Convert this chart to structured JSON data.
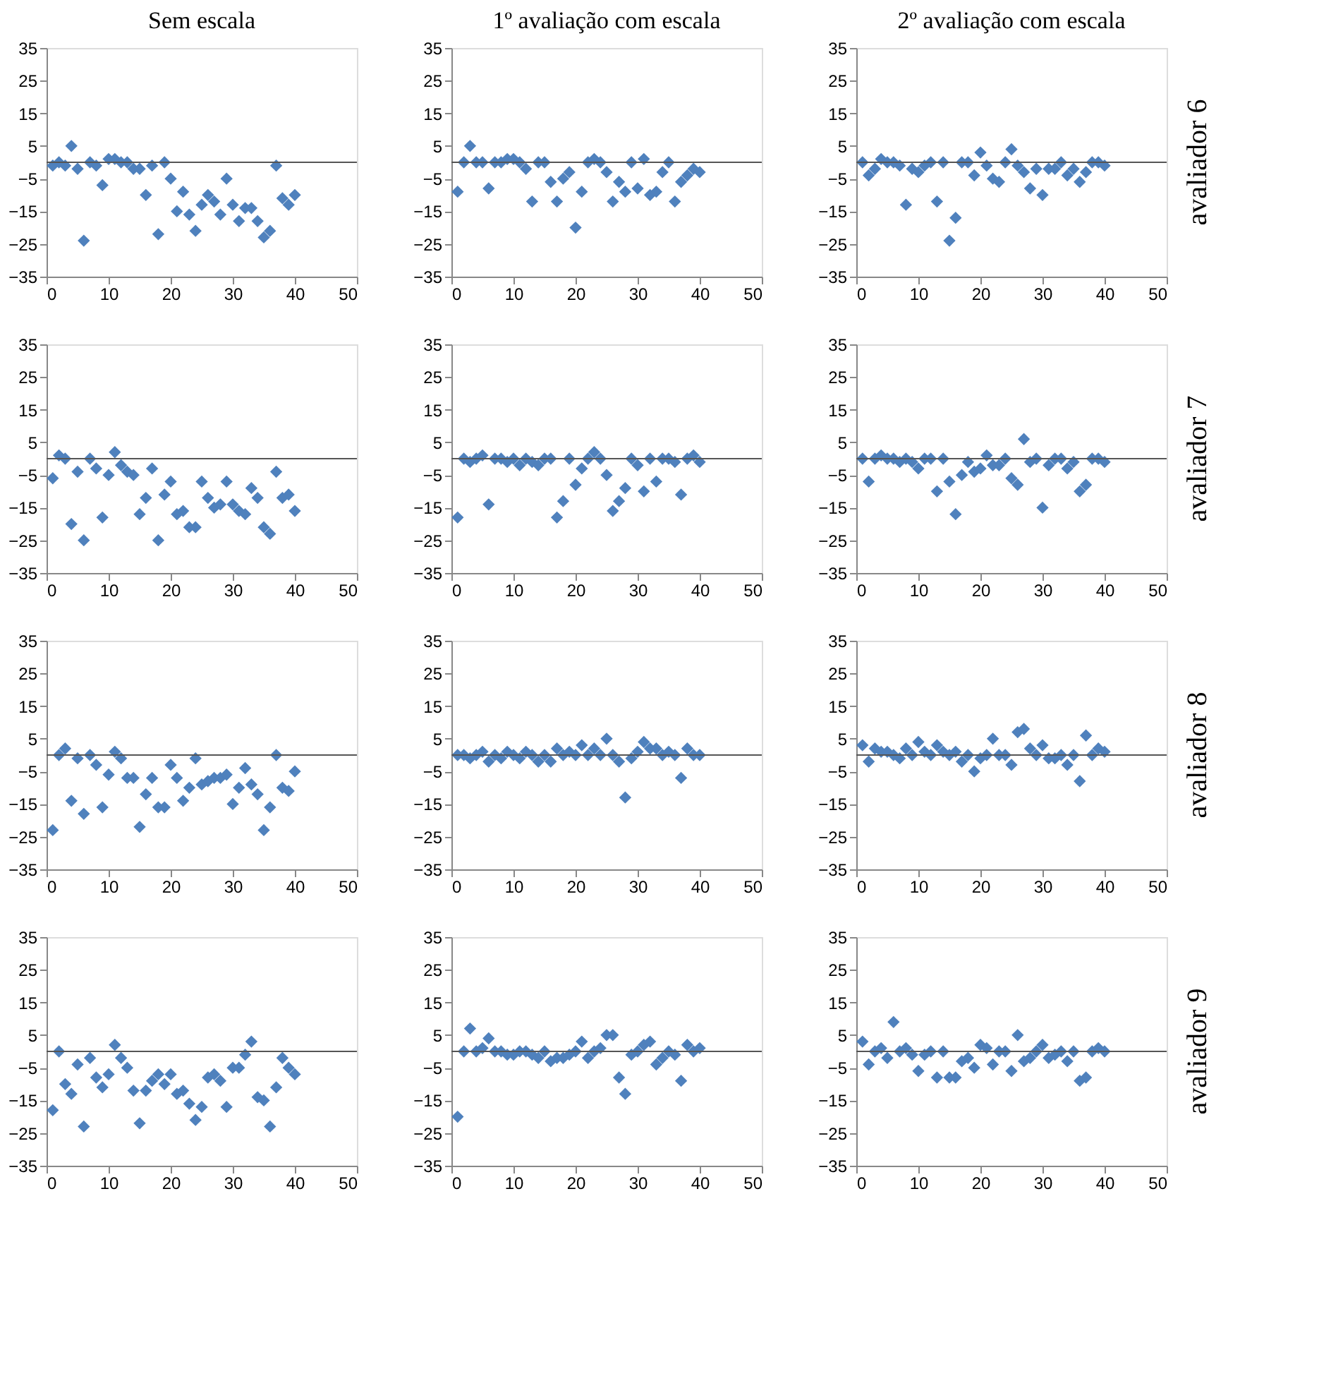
{
  "chart_data": [
    {
      "type": "scatter",
      "title": "Sem escala",
      "x": [
        1,
        2,
        3,
        4,
        5,
        6,
        7,
        8,
        9,
        10,
        11,
        12,
        13,
        14,
        15,
        16,
        17,
        18,
        19,
        20,
        21,
        22,
        23,
        24,
        25,
        26,
        27,
        28,
        29,
        30,
        31,
        32,
        33,
        34,
        35,
        36,
        37,
        38,
        39,
        40
      ],
      "series": [
        {
          "color": "#4f81bd",
          "values": [
            -1,
            0,
            -1,
            5,
            -2,
            -24,
            0,
            -1,
            -7,
            1,
            1,
            0,
            0,
            -2,
            -2,
            -10,
            -1,
            -22,
            0,
            -5,
            -15,
            -9,
            -16,
            -21,
            -13,
            -10,
            -12,
            -16,
            -5,
            -13,
            -18,
            -14,
            -14,
            -18,
            -23,
            -21,
            -1,
            -11,
            -13,
            -10
          ]
        }
      ],
      "xlim": [
        0,
        50
      ],
      "xticks": [
        0,
        10,
        20,
        30,
        40,
        50
      ],
      "ylim": [
        -35,
        35
      ],
      "yticks": [
        -35,
        -25,
        -15,
        -5,
        5,
        15,
        25,
        35
      ],
      "marker": "diamond",
      "grid": false,
      "ref_lines": [
        {
          "axis": "y",
          "value": 0
        }
      ]
    },
    {
      "type": "scatter",
      "title": "1º avaliação com escala",
      "x": [
        1,
        2,
        3,
        4,
        5,
        6,
        7,
        8,
        9,
        10,
        11,
        12,
        13,
        14,
        15,
        16,
        17,
        18,
        19,
        20,
        21,
        22,
        23,
        24,
        25,
        26,
        27,
        28,
        29,
        30,
        31,
        32,
        33,
        34,
        35,
        36,
        37,
        38,
        39,
        40
      ],
      "series": [
        {
          "color": "#4f81bd",
          "values": [
            -9,
            0,
            5,
            0,
            0,
            -8,
            0,
            0,
            1,
            1,
            0,
            -2,
            -12,
            0,
            0,
            -6,
            -12,
            -5,
            -3,
            -20,
            -9,
            0,
            1,
            0,
            -3,
            -12,
            -6,
            -9,
            0,
            -8,
            1,
            -10,
            -9,
            -3,
            0,
            -12,
            -6,
            -4,
            -2,
            -3
          ]
        }
      ],
      "xlim": [
        0,
        50
      ],
      "xticks": [
        0,
        10,
        20,
        30,
        40,
        50
      ],
      "ylim": [
        -35,
        35
      ],
      "yticks": [
        -35,
        -25,
        -15,
        -5,
        5,
        15,
        25,
        35
      ],
      "marker": "diamond",
      "grid": false,
      "ref_lines": [
        {
          "axis": "y",
          "value": 0
        }
      ]
    },
    {
      "type": "scatter",
      "title": "2º avaliação com escala",
      "y2label": "avaliador 6",
      "x": [
        1,
        2,
        3,
        4,
        5,
        6,
        7,
        8,
        9,
        10,
        11,
        12,
        13,
        14,
        15,
        16,
        17,
        18,
        19,
        20,
        21,
        22,
        23,
        24,
        25,
        26,
        27,
        28,
        29,
        30,
        31,
        32,
        33,
        34,
        35,
        36,
        37,
        38,
        39,
        40
      ],
      "series": [
        {
          "color": "#4f81bd",
          "values": [
            0,
            -4,
            -2,
            1,
            0,
            0,
            -1,
            -13,
            -2,
            -3,
            -1,
            0,
            -12,
            0,
            -24,
            -17,
            0,
            0,
            -4,
            3,
            -1,
            -5,
            -6,
            0,
            4,
            -1,
            -3,
            -8,
            -2,
            -10,
            -2,
            -2,
            0,
            -4,
            -2,
            -6,
            -3,
            0,
            0,
            -1
          ]
        }
      ],
      "xlim": [
        0,
        50
      ],
      "xticks": [
        0,
        10,
        20,
        30,
        40,
        50
      ],
      "ylim": [
        -35,
        35
      ],
      "yticks": [
        -35,
        -25,
        -15,
        -5,
        5,
        15,
        25,
        35
      ],
      "marker": "diamond",
      "grid": false,
      "ref_lines": [
        {
          "axis": "y",
          "value": 0
        }
      ]
    },
    {
      "type": "scatter",
      "x": [
        1,
        2,
        3,
        4,
        5,
        6,
        7,
        8,
        9,
        10,
        11,
        12,
        13,
        14,
        15,
        16,
        17,
        18,
        19,
        20,
        21,
        22,
        23,
        24,
        25,
        26,
        27,
        28,
        29,
        30,
        31,
        32,
        33,
        34,
        35,
        36,
        37,
        38,
        39,
        40
      ],
      "series": [
        {
          "color": "#4f81bd",
          "values": [
            -6,
            1,
            0,
            -20,
            -4,
            -25,
            0,
            -3,
            -18,
            -5,
            2,
            -2,
            -4,
            -5,
            -17,
            -12,
            -3,
            -25,
            -11,
            -7,
            -17,
            -16,
            -21,
            -21,
            -7,
            -12,
            -15,
            -14,
            -7,
            -14,
            -16,
            -17,
            -9,
            -12,
            -21,
            -23,
            -4,
            -12,
            -11,
            -16
          ]
        }
      ],
      "xlim": [
        0,
        50
      ],
      "xticks": [
        0,
        10,
        20,
        30,
        40,
        50
      ],
      "ylim": [
        -35,
        35
      ],
      "yticks": [
        -35,
        -25,
        -15,
        -5,
        5,
        15,
        25,
        35
      ],
      "marker": "diamond",
      "grid": false,
      "ref_lines": [
        {
          "axis": "y",
          "value": 0
        }
      ]
    },
    {
      "type": "scatter",
      "x": [
        1,
        2,
        3,
        4,
        5,
        6,
        7,
        8,
        9,
        10,
        11,
        12,
        13,
        14,
        15,
        16,
        17,
        18,
        19,
        20,
        21,
        22,
        23,
        24,
        25,
        26,
        27,
        28,
        29,
        30,
        31,
        32,
        33,
        34,
        35,
        36,
        37,
        38,
        39,
        40
      ],
      "series": [
        {
          "color": "#4f81bd",
          "values": [
            -18,
            0,
            -1,
            0,
            1,
            -14,
            0,
            0,
            -1,
            0,
            -2,
            0,
            -1,
            -2,
            0,
            0,
            -18,
            -13,
            0,
            -8,
            -3,
            0,
            2,
            0,
            -5,
            -16,
            -13,
            -9,
            0,
            -2,
            -10,
            0,
            -7,
            0,
            0,
            -1,
            -11,
            0,
            1,
            -1
          ]
        }
      ],
      "xlim": [
        0,
        50
      ],
      "xticks": [
        0,
        10,
        20,
        30,
        40,
        50
      ],
      "ylim": [
        -35,
        35
      ],
      "yticks": [
        -35,
        -25,
        -15,
        -5,
        5,
        15,
        25,
        35
      ],
      "marker": "diamond",
      "grid": false,
      "ref_lines": [
        {
          "axis": "y",
          "value": 0
        }
      ]
    },
    {
      "type": "scatter",
      "y2label": "avaliador 7",
      "x": [
        1,
        2,
        3,
        4,
        5,
        6,
        7,
        8,
        9,
        10,
        11,
        12,
        13,
        14,
        15,
        16,
        17,
        18,
        19,
        20,
        21,
        22,
        23,
        24,
        25,
        26,
        27,
        28,
        29,
        30,
        31,
        32,
        33,
        34,
        35,
        36,
        37,
        38,
        39,
        40
      ],
      "series": [
        {
          "color": "#4f81bd",
          "values": [
            0,
            -7,
            0,
            1,
            0,
            0,
            -1,
            0,
            -1,
            -3,
            0,
            0,
            -10,
            0,
            -7,
            -17,
            -5,
            -1,
            -4,
            -3,
            1,
            -2,
            -2,
            0,
            -6,
            -8,
            6,
            -1,
            0,
            -15,
            -2,
            0,
            0,
            -3,
            -1,
            -10,
            -8,
            0,
            0,
            -1
          ]
        }
      ],
      "xlim": [
        0,
        50
      ],
      "xticks": [
        0,
        10,
        20,
        30,
        40,
        50
      ],
      "ylim": [
        -35,
        35
      ],
      "yticks": [
        -35,
        -25,
        -15,
        -5,
        5,
        15,
        25,
        35
      ],
      "marker": "diamond",
      "grid": false,
      "ref_lines": [
        {
          "axis": "y",
          "value": 0
        }
      ]
    },
    {
      "type": "scatter",
      "x": [
        1,
        2,
        3,
        4,
        5,
        6,
        7,
        8,
        9,
        10,
        11,
        12,
        13,
        14,
        15,
        16,
        17,
        18,
        19,
        20,
        21,
        22,
        23,
        24,
        25,
        26,
        27,
        28,
        29,
        30,
        31,
        32,
        33,
        34,
        35,
        36,
        37,
        38,
        39,
        40
      ],
      "series": [
        {
          "color": "#4f81bd",
          "values": [
            -23,
            0,
            2,
            -14,
            -1,
            -18,
            0,
            -3,
            -16,
            -6,
            1,
            -1,
            -7,
            -7,
            -22,
            -12,
            -7,
            -16,
            -16,
            -3,
            -7,
            -14,
            -10,
            -1,
            -9,
            -8,
            -7,
            -7,
            -6,
            -15,
            -10,
            -4,
            -9,
            -12,
            -23,
            -16,
            0,
            -10,
            -11,
            -5
          ]
        }
      ],
      "xlim": [
        0,
        50
      ],
      "xticks": [
        0,
        10,
        20,
        30,
        40,
        50
      ],
      "ylim": [
        -35,
        35
      ],
      "yticks": [
        -35,
        -25,
        -15,
        -5,
        5,
        15,
        25,
        35
      ],
      "marker": "diamond",
      "grid": false,
      "ref_lines": [
        {
          "axis": "y",
          "value": 0
        }
      ]
    },
    {
      "type": "scatter",
      "x": [
        1,
        2,
        3,
        4,
        5,
        6,
        7,
        8,
        9,
        10,
        11,
        12,
        13,
        14,
        15,
        16,
        17,
        18,
        19,
        20,
        21,
        22,
        23,
        24,
        25,
        26,
        27,
        28,
        29,
        30,
        31,
        32,
        33,
        34,
        35,
        36,
        37,
        38,
        39,
        40
      ],
      "series": [
        {
          "color": "#4f81bd",
          "values": [
            0,
            0,
            -1,
            0,
            1,
            -2,
            0,
            -1,
            1,
            0,
            -1,
            1,
            0,
            -2,
            0,
            -2,
            2,
            0,
            1,
            0,
            3,
            0,
            2,
            0,
            5,
            0,
            -2,
            -13,
            -1,
            1,
            4,
            2,
            2,
            0,
            1,
            0,
            -7,
            2,
            0,
            0
          ]
        }
      ],
      "xlim": [
        0,
        50
      ],
      "xticks": [
        0,
        10,
        20,
        30,
        40,
        50
      ],
      "ylim": [
        -35,
        35
      ],
      "yticks": [
        -35,
        -25,
        -15,
        -5,
        5,
        15,
        25,
        35
      ],
      "marker": "diamond",
      "grid": false,
      "ref_lines": [
        {
          "axis": "y",
          "value": 0
        }
      ]
    },
    {
      "type": "scatter",
      "y2label": "avaliador 8",
      "x": [
        1,
        2,
        3,
        4,
        5,
        6,
        7,
        8,
        9,
        10,
        11,
        12,
        13,
        14,
        15,
        16,
        17,
        18,
        19,
        20,
        21,
        22,
        23,
        24,
        25,
        26,
        27,
        28,
        29,
        30,
        31,
        32,
        33,
        34,
        35,
        36,
        37,
        38,
        39,
        40
      ],
      "series": [
        {
          "color": "#4f81bd",
          "values": [
            3,
            -2,
            2,
            1,
            1,
            0,
            -1,
            2,
            0,
            4,
            1,
            0,
            3,
            1,
            0,
            1,
            -2,
            0,
            -5,
            -1,
            0,
            5,
            0,
            0,
            -3,
            7,
            8,
            2,
            0,
            3,
            -1,
            -1,
            0,
            -3,
            0,
            -8,
            6,
            0,
            2,
            1
          ]
        }
      ],
      "xlim": [
        0,
        50
      ],
      "xticks": [
        0,
        10,
        20,
        30,
        40,
        50
      ],
      "ylim": [
        -35,
        35
      ],
      "yticks": [
        -35,
        -25,
        -15,
        -5,
        5,
        15,
        25,
        35
      ],
      "marker": "diamond",
      "grid": false,
      "ref_lines": [
        {
          "axis": "y",
          "value": 0
        }
      ]
    },
    {
      "type": "scatter",
      "x": [
        1,
        2,
        3,
        4,
        5,
        6,
        7,
        8,
        9,
        10,
        11,
        12,
        13,
        14,
        15,
        16,
        17,
        18,
        19,
        20,
        21,
        22,
        23,
        24,
        25,
        26,
        27,
        28,
        29,
        30,
        31,
        32,
        33,
        34,
        35,
        36,
        37,
        38,
        39,
        40
      ],
      "series": [
        {
          "color": "#4f81bd",
          "values": [
            -18,
            0,
            -10,
            -13,
            -4,
            -23,
            -2,
            -8,
            -11,
            -7,
            2,
            -2,
            -5,
            -12,
            -22,
            -12,
            -9,
            -7,
            -10,
            -7,
            -13,
            -12,
            -16,
            -21,
            -17,
            -8,
            -7,
            -9,
            -17,
            -5,
            -5,
            -1,
            3,
            -14,
            -15,
            -23,
            -11,
            -2,
            -5,
            -7
          ]
        }
      ],
      "xlim": [
        0,
        50
      ],
      "xticks": [
        0,
        10,
        20,
        30,
        40,
        50
      ],
      "ylim": [
        -35,
        35
      ],
      "yticks": [
        -35,
        -25,
        -15,
        -5,
        5,
        15,
        25,
        35
      ],
      "marker": "diamond",
      "grid": false,
      "ref_lines": [
        {
          "axis": "y",
          "value": 0
        }
      ]
    },
    {
      "type": "scatter",
      "x": [
        1,
        2,
        3,
        4,
        5,
        6,
        7,
        8,
        9,
        10,
        11,
        12,
        13,
        14,
        15,
        16,
        17,
        18,
        19,
        20,
        21,
        22,
        23,
        24,
        25,
        26,
        27,
        28,
        29,
        30,
        31,
        32,
        33,
        34,
        35,
        36,
        37,
        38,
        39,
        40
      ],
      "series": [
        {
          "color": "#4f81bd",
          "values": [
            -20,
            0,
            7,
            0,
            1,
            4,
            0,
            0,
            -1,
            -1,
            0,
            0,
            -1,
            -2,
            0,
            -3,
            -2,
            -2,
            -1,
            0,
            3,
            -2,
            0,
            1,
            5,
            5,
            -8,
            -13,
            -1,
            0,
            2,
            3,
            -4,
            -2,
            0,
            -1,
            -9,
            2,
            0,
            1
          ]
        }
      ],
      "xlim": [
        0,
        50
      ],
      "xticks": [
        0,
        10,
        20,
        30,
        40,
        50
      ],
      "ylim": [
        -35,
        35
      ],
      "yticks": [
        -35,
        -25,
        -15,
        -5,
        5,
        15,
        25,
        35
      ],
      "marker": "diamond",
      "grid": false,
      "ref_lines": [
        {
          "axis": "y",
          "value": 0
        }
      ]
    },
    {
      "type": "scatter",
      "y2label": "avaliador 9",
      "x": [
        1,
        2,
        3,
        4,
        5,
        6,
        7,
        8,
        9,
        10,
        11,
        12,
        13,
        14,
        15,
        16,
        17,
        18,
        19,
        20,
        21,
        22,
        23,
        24,
        25,
        26,
        27,
        28,
        29,
        30,
        31,
        32,
        33,
        34,
        35,
        36,
        37,
        38,
        39,
        40
      ],
      "series": [
        {
          "color": "#4f81bd",
          "values": [
            3,
            -4,
            0,
            1,
            -2,
            9,
            0,
            1,
            -1,
            -6,
            -1,
            0,
            -8,
            0,
            -8,
            -8,
            -3,
            -2,
            -5,
            2,
            1,
            -4,
            0,
            0,
            -6,
            5,
            -3,
            -2,
            0,
            2,
            -2,
            -1,
            0,
            -3,
            0,
            -9,
            -8,
            0,
            1,
            0
          ]
        }
      ],
      "xlim": [
        0,
        50
      ],
      "xticks": [
        0,
        10,
        20,
        30,
        40,
        50
      ],
      "ylim": [
        -35,
        35
      ],
      "yticks": [
        -35,
        -25,
        -15,
        -5,
        5,
        15,
        25,
        35
      ],
      "marker": "diamond",
      "grid": false,
      "ref_lines": [
        {
          "axis": "y",
          "value": 0
        }
      ]
    }
  ]
}
